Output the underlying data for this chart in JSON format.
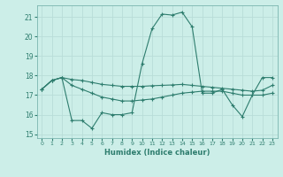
{
  "xlabel": "Humidex (Indice chaleur)",
  "xlim": [
    -0.5,
    23.5
  ],
  "ylim": [
    14.8,
    21.6
  ],
  "yticks": [
    15,
    16,
    17,
    18,
    19,
    20,
    21
  ],
  "xticks": [
    0,
    1,
    2,
    3,
    4,
    5,
    6,
    7,
    8,
    9,
    10,
    11,
    12,
    13,
    14,
    15,
    16,
    17,
    18,
    19,
    20,
    21,
    22,
    23
  ],
  "bg_color": "#cceee8",
  "line_color": "#2e7d6e",
  "grid_color": "#b8ddd8",
  "line1_x": [
    0,
    1,
    2,
    3,
    4,
    5,
    6,
    7,
    8,
    9,
    10,
    11,
    12,
    13,
    14,
    15,
    16,
    17,
    18,
    19,
    20,
    21,
    22,
    23
  ],
  "line1_y": [
    17.3,
    17.75,
    17.9,
    17.8,
    17.75,
    17.65,
    17.55,
    17.5,
    17.45,
    17.45,
    17.45,
    17.48,
    17.5,
    17.52,
    17.55,
    17.5,
    17.45,
    17.4,
    17.35,
    17.3,
    17.25,
    17.2,
    17.25,
    17.5
  ],
  "line2_x": [
    0,
    1,
    2,
    3,
    4,
    5,
    6,
    7,
    8,
    9,
    10,
    11,
    12,
    13,
    14,
    15,
    16,
    17,
    18,
    19,
    20,
    21,
    22,
    23
  ],
  "line2_y": [
    17.3,
    17.75,
    17.9,
    15.7,
    15.7,
    15.3,
    16.1,
    16.0,
    16.0,
    16.1,
    18.6,
    20.4,
    21.15,
    21.1,
    21.25,
    20.5,
    17.1,
    17.1,
    17.3,
    16.5,
    15.9,
    17.0,
    17.9,
    17.9
  ],
  "line3_x": [
    0,
    1,
    2,
    3,
    4,
    5,
    6,
    7,
    8,
    9,
    10,
    11,
    12,
    13,
    14,
    15,
    16,
    17,
    18,
    19,
    20,
    21,
    22,
    23
  ],
  "line3_y": [
    17.3,
    17.75,
    17.9,
    17.5,
    17.3,
    17.1,
    16.9,
    16.8,
    16.7,
    16.7,
    16.75,
    16.8,
    16.9,
    17.0,
    17.1,
    17.15,
    17.2,
    17.2,
    17.2,
    17.1,
    17.0,
    17.0,
    17.0,
    17.1
  ]
}
